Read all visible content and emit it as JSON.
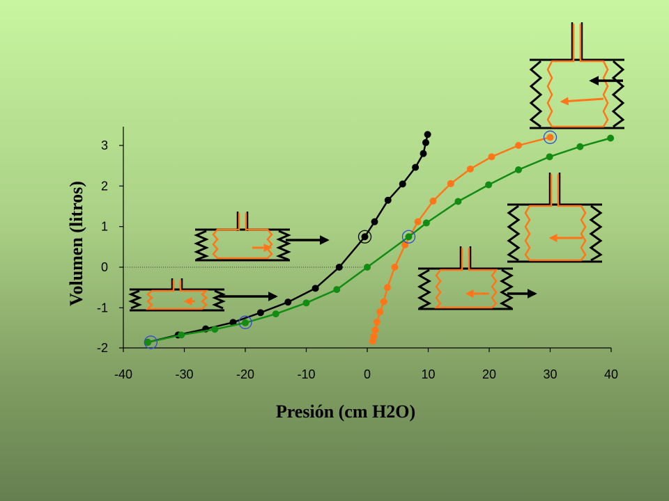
{
  "chart_data": {
    "type": "scatter",
    "title": "",
    "xlabel": "Presión  (cm H2O)",
    "ylabel": "Volumen  (litros)",
    "xlim": [
      -40,
      40
    ],
    "ylim": [
      -2,
      3.35
    ],
    "xticks": [
      -40,
      -30,
      -20,
      -10,
      0,
      10,
      20,
      30,
      40
    ],
    "yticks": [
      -2,
      -1,
      0,
      1,
      2,
      3
    ],
    "xtick_labels": [
      "-40",
      "-30",
      "-20",
      "-10",
      "0",
      "10",
      "20",
      "30",
      "40"
    ],
    "ytick_labels": [
      "-2",
      "-1",
      "0",
      "1",
      "2",
      "3"
    ],
    "grid": false,
    "reference_line_y": 0,
    "series": [
      {
        "color": "#000000",
        "points": [
          [
            -36,
            -1.85
          ],
          [
            -31,
            -1.67
          ],
          [
            -26.5,
            -1.52
          ],
          [
            -22,
            -1.36
          ],
          [
            -17.5,
            -1.12
          ],
          [
            -13,
            -0.86
          ],
          [
            -8.5,
            -0.52
          ],
          [
            -4.6,
            0.0
          ],
          [
            -0.4,
            0.75
          ],
          [
            1.2,
            1.12
          ],
          [
            3.4,
            1.65
          ],
          [
            5.8,
            2.05
          ],
          [
            7.9,
            2.46
          ],
          [
            9.2,
            2.8
          ],
          [
            9.6,
            3.07
          ],
          [
            9.9,
            3.27
          ]
        ]
      },
      {
        "color": "#ff7518",
        "points": [
          [
            0.9,
            -1.82
          ],
          [
            1.1,
            -1.7
          ],
          [
            1.3,
            -1.55
          ],
          [
            1.6,
            -1.35
          ],
          [
            2.1,
            -1.1
          ],
          [
            2.7,
            -0.85
          ],
          [
            3.3,
            -0.5
          ],
          [
            4.5,
            0.0
          ],
          [
            6.2,
            0.55
          ],
          [
            8.3,
            1.12
          ],
          [
            10.8,
            1.63
          ],
          [
            13.7,
            2.06
          ],
          [
            16.9,
            2.42
          ],
          [
            20.4,
            2.72
          ],
          [
            24.8,
            3.0
          ],
          [
            30,
            3.2
          ]
        ]
      },
      {
        "color": "#128c12",
        "points": [
          [
            -36,
            -1.85
          ],
          [
            -30.5,
            -1.67
          ],
          [
            -25,
            -1.53
          ],
          [
            -20,
            -1.37
          ],
          [
            -15,
            -1.15
          ],
          [
            -10,
            -0.88
          ],
          [
            -5,
            -0.55
          ],
          [
            0,
            0.0
          ],
          [
            6.8,
            0.75
          ],
          [
            9.7,
            1.09
          ],
          [
            14.9,
            1.62
          ],
          [
            19.9,
            2.03
          ],
          [
            24.8,
            2.4
          ],
          [
            29.9,
            2.72
          ],
          [
            34.9,
            2.97
          ],
          [
            39.9,
            3.18
          ]
        ]
      }
    ],
    "highlighted_points": [
      [
        -35.5,
        -1.85
      ],
      [
        -20,
        -1.36
      ],
      [
        -0.4,
        0.75
      ],
      [
        6.8,
        0.75
      ],
      [
        30,
        3.2
      ]
    ]
  }
}
